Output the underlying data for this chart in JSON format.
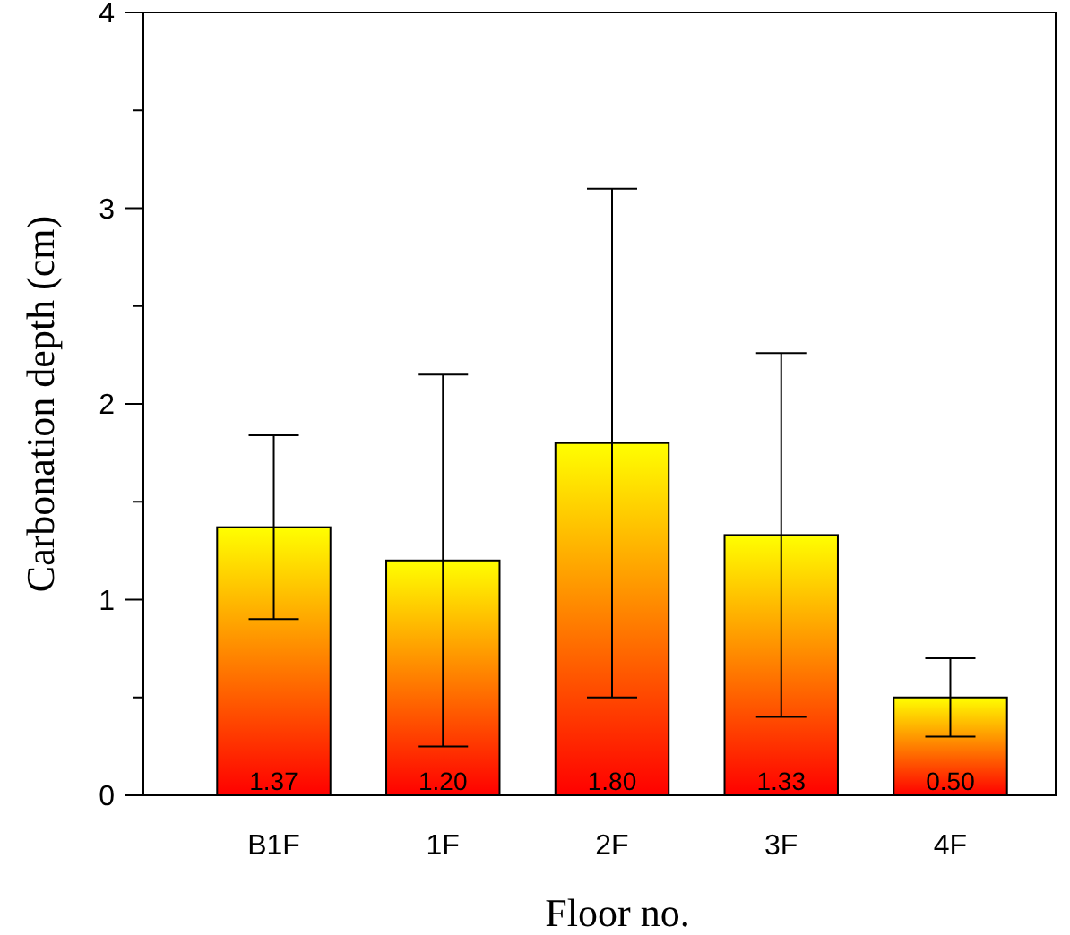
{
  "chart_data": {
    "type": "bar",
    "xlabel": "Floor no.",
    "ylabel": "Carbonation depth (cm)",
    "categories": [
      "B1F",
      "1F",
      "2F",
      "3F",
      "4F"
    ],
    "series": [
      {
        "color": "#ff0000",
        "values": [
          1.37,
          1.2,
          1.8,
          1.33,
          0.5
        ],
        "errors": [
          0.47,
          0.95,
          1.3,
          0.93,
          0.2
        ],
        "value_labels": [
          "1.37",
          "1.20",
          "1.80",
          "1.33",
          "0.50"
        ]
      }
    ],
    "ylim": [
      0,
      4
    ],
    "yticks": [
      0,
      {
        "value": 0.5,
        "label": null
      },
      1,
      {
        "value": 1.5,
        "label": null
      },
      2,
      {
        "value": 2.5,
        "label": null
      },
      3,
      {
        "value": 3.5,
        "label": null
      },
      4
    ],
    "grid": false
  }
}
